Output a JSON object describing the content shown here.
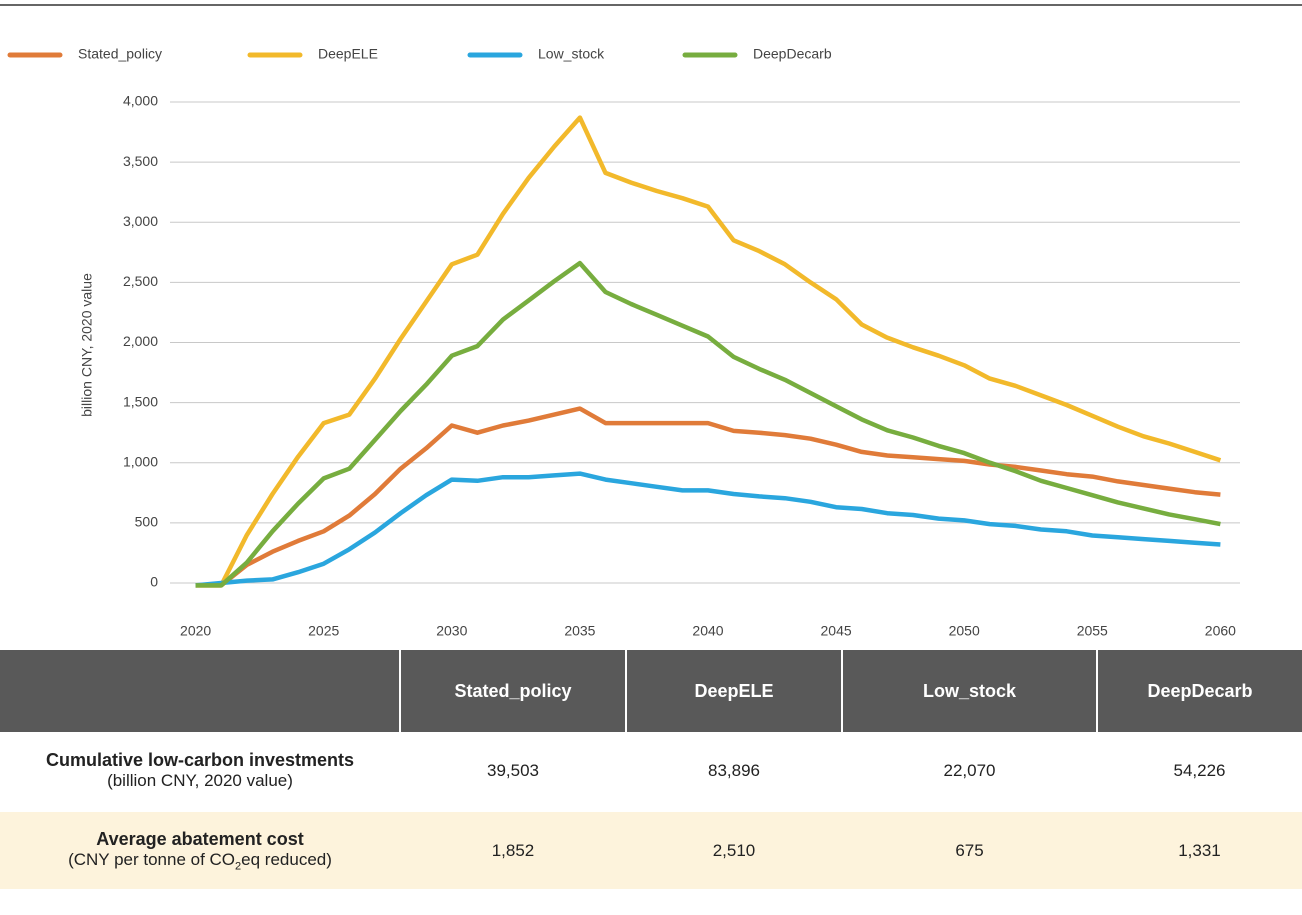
{
  "chart_data": {
    "type": "line",
    "ylabel": "billion CNY, 2020 value",
    "x": [
      2020,
      2021,
      2022,
      2023,
      2024,
      2025,
      2026,
      2027,
      2028,
      2029,
      2030,
      2031,
      2032,
      2033,
      2034,
      2035,
      2036,
      2037,
      2038,
      2039,
      2040,
      2041,
      2042,
      2043,
      2044,
      2045,
      2046,
      2047,
      2048,
      2049,
      2050,
      2051,
      2052,
      2053,
      2054,
      2055,
      2056,
      2057,
      2058,
      2059,
      2060
    ],
    "xlim": [
      2019,
      2061
    ],
    "xticks": [
      2020,
      2025,
      2030,
      2035,
      2040,
      2045,
      2050,
      2055,
      2060
    ],
    "ylim": [
      -100,
      4000
    ],
    "yticks": [
      0,
      500,
      {
        "value": 1000,
        "label": "1,000"
      },
      {
        "value": 1500,
        "label": "1,500"
      },
      {
        "value": 2000,
        "label": "2,000"
      },
      {
        "value": 2500,
        "label": "2,500"
      },
      {
        "value": 3000,
        "label": "3,000"
      },
      {
        "value": 3500,
        "label": "3,500"
      },
      {
        "value": 4000,
        "label": "4,000"
      }
    ],
    "grid": true,
    "legend": "top",
    "series": [
      {
        "name": "Stated_policy",
        "color": "#e07b39",
        "values": [
          -20,
          -20,
          150,
          260,
          350,
          430,
          560,
          740,
          950,
          1120,
          1310,
          1250,
          1310,
          1350,
          1400,
          1450,
          1330,
          1330,
          1330,
          1330,
          1330,
          1265,
          1250,
          1230,
          1200,
          1150,
          1090,
          1060,
          1045,
          1030,
          1015,
          985,
          965,
          935,
          905,
          885,
          845,
          815,
          785,
          755,
          735
        ]
      },
      {
        "name": "DeepELE",
        "color": "#f2b92b",
        "values": [
          -20,
          -20,
          400,
          740,
          1050,
          1330,
          1400,
          1700,
          2030,
          2340,
          2650,
          2730,
          3070,
          3370,
          3630,
          3870,
          3410,
          3330,
          3260,
          3200,
          3130,
          2850,
          2760,
          2650,
          2500,
          2360,
          2150,
          2040,
          1960,
          1890,
          1810,
          1700,
          1640,
          1560,
          1480,
          1390,
          1300,
          1220,
          1160,
          1090,
          1020
        ]
      },
      {
        "name": "Low_stock",
        "color": "#2aa6de",
        "values": [
          -20,
          0,
          20,
          30,
          90,
          160,
          280,
          420,
          580,
          730,
          860,
          850,
          880,
          880,
          895,
          910,
          860,
          830,
          800,
          770,
          770,
          740,
          720,
          705,
          675,
          630,
          615,
          580,
          565,
          535,
          520,
          490,
          475,
          445,
          430,
          395,
          380,
          365,
          350,
          335,
          320
        ]
      },
      {
        "name": "DeepDecarb",
        "color": "#77ad3f",
        "values": [
          -20,
          -20,
          170,
          430,
          660,
          870,
          950,
          1190,
          1430,
          1650,
          1890,
          1970,
          2190,
          2350,
          2510,
          2660,
          2420,
          2320,
          2230,
          2140,
          2050,
          1880,
          1780,
          1690,
          1580,
          1470,
          1360,
          1270,
          1210,
          1140,
          1080,
          1000,
          930,
          850,
          790,
          730,
          670,
          620,
          570,
          530,
          490
        ]
      }
    ]
  },
  "table": {
    "columns": [
      "Stated_policy",
      "DeepELE",
      "Low_stock",
      "DeepDecarb"
    ],
    "rows": [
      {
        "label": "Cumulative low-carbon investments",
        "sublabel_parts": [
          "(billion CNY, 2020 value)"
        ],
        "cells": [
          "39,503",
          "83,896",
          "22,070",
          "54,226"
        ]
      },
      {
        "label": "Average abatement cost",
        "sublabel_parts": [
          "(CNY per tonne of CO",
          "2",
          "eq reduced)"
        ],
        "cells": [
          "1,852",
          "2,510",
          "675",
          "1,331"
        ]
      }
    ]
  }
}
